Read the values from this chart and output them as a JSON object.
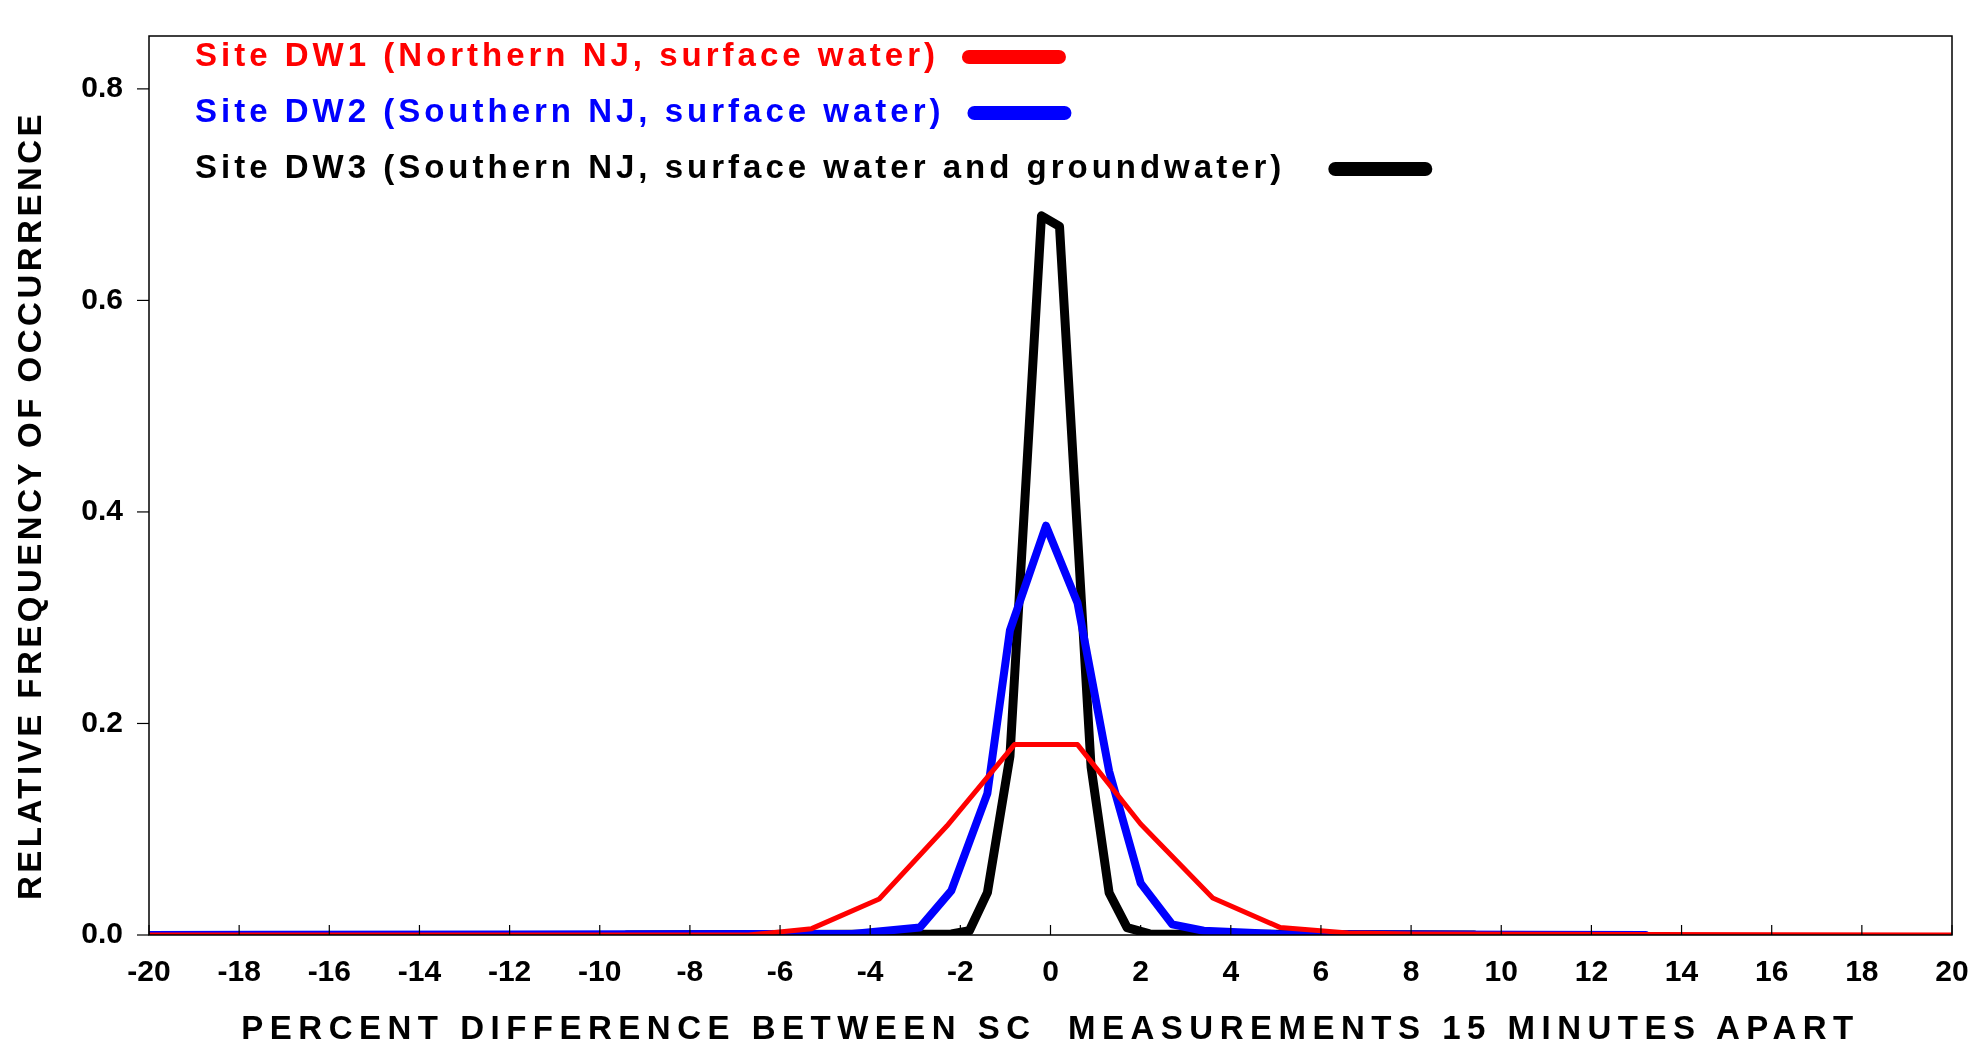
{
  "chart_data": {
    "type": "line",
    "xlabel": "PERCENT DIFFERENCE BETWEEN SC  MEASUREMENTS 15 MINUTES APART",
    "ylabel": "RELATIVE FREQUENCY OF OCCURRENCE",
    "xlim": [
      -20,
      20
    ],
    "xticks": [
      -20,
      -18,
      -16,
      -14,
      -12,
      -10,
      -8,
      -6,
      -4,
      -2,
      0,
      2,
      4,
      6,
      8,
      10,
      12,
      14,
      16,
      18,
      20
    ],
    "ylim": [
      0,
      0.85
    ],
    "yticks": [
      {
        "value": 0,
        "label": "0.0"
      },
      {
        "value": 0.2,
        "label": "0.2"
      },
      {
        "value": 0.4,
        "label": "0.4"
      },
      {
        "value": 0.6,
        "label": "0.6"
      },
      {
        "value": 0.8,
        "label": "0.8"
      }
    ],
    "grid": false,
    "legend": "top left",
    "marker": "none",
    "line_style": "solid",
    "series": [
      {
        "name": "Site DW1 (Northern NJ, surface water)",
        "color": "#ff0000",
        "x": [
          -20,
          -6.7,
          -5.3,
          -3.8,
          -2.3,
          -0.8,
          0.6,
          2.0,
          3.6,
          5.1,
          6.6,
          8.1,
          20
        ],
        "values": [
          0,
          0,
          0.006,
          0.034,
          0.103,
          0.18,
          0.18,
          0.105,
          0.035,
          0.007,
          0.002,
          0.001,
          0
        ]
      },
      {
        "name": "Site DW2 (Southern NJ, surface water)",
        "color": "#0000ff",
        "x": [
          -20,
          -4.4,
          -2.9,
          -2.2,
          -1.4,
          -0.9,
          -0.1,
          0.6,
          1.3,
          2.0,
          2.7,
          3.4,
          5,
          13.2
        ],
        "values": [
          0,
          0.001,
          0.007,
          0.042,
          0.134,
          0.288,
          0.387,
          0.314,
          0.155,
          0.049,
          0.01,
          0.004,
          0.001,
          0
        ]
      },
      {
        "name": "Site DW3 (Southern NJ, surface water and groundwater)",
        "color": "#000000",
        "x": [
          -9.4,
          -2.2,
          -1.8,
          -1.4,
          -0.9,
          -0.2,
          0.2,
          0.9,
          1.3,
          1.7,
          2.2,
          9.4
        ],
        "values": [
          0,
          0.001,
          0.004,
          0.04,
          0.169,
          0.68,
          0.67,
          0.159,
          0.04,
          0.007,
          0.001,
          0
        ]
      }
    ]
  }
}
